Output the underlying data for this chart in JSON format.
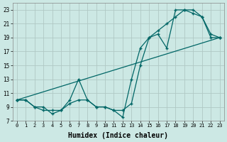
{
  "title": "",
  "xlabel": "Humidex (Indice chaleur)",
  "ylabel": "",
  "bg_color": "#cce8e4",
  "grid_color": "#b0c8c4",
  "line_color": "#006666",
  "xlim": [
    -0.5,
    23.5
  ],
  "ylim": [
    7,
    24
  ],
  "yticks": [
    7,
    9,
    11,
    13,
    15,
    17,
    19,
    21,
    23
  ],
  "xticks": [
    0,
    1,
    2,
    3,
    4,
    5,
    6,
    7,
    8,
    9,
    10,
    11,
    12,
    13,
    14,
    15,
    16,
    17,
    18,
    19,
    20,
    21,
    22,
    23
  ],
  "series1_x": [
    0,
    1,
    2,
    3,
    4,
    5,
    6,
    7,
    8,
    9,
    10,
    11,
    12,
    13,
    14,
    15,
    16,
    17,
    18,
    19,
    20,
    21,
    22,
    23
  ],
  "series1_y": [
    10,
    10,
    9,
    8.5,
    8.5,
    8.5,
    10,
    13,
    10,
    9,
    9,
    8.5,
    7.5,
    13,
    17.5,
    19,
    19.5,
    17.5,
    23,
    23,
    22.5,
    22,
    19,
    19
  ],
  "series2_x": [
    0,
    1,
    2,
    3,
    4,
    5,
    6,
    7,
    8,
    9,
    10,
    11,
    12,
    13,
    14,
    15,
    16,
    17,
    18,
    19,
    20,
    21,
    22,
    23
  ],
  "series2_y": [
    10,
    10,
    9,
    9,
    8,
    8.5,
    9.5,
    10,
    10,
    9,
    9,
    8.5,
    8.5,
    9.5,
    15,
    19,
    20,
    21,
    22,
    23,
    23,
    22,
    19.5,
    19
  ],
  "series3_x": [
    0,
    23
  ],
  "series3_y": [
    10,
    19
  ]
}
